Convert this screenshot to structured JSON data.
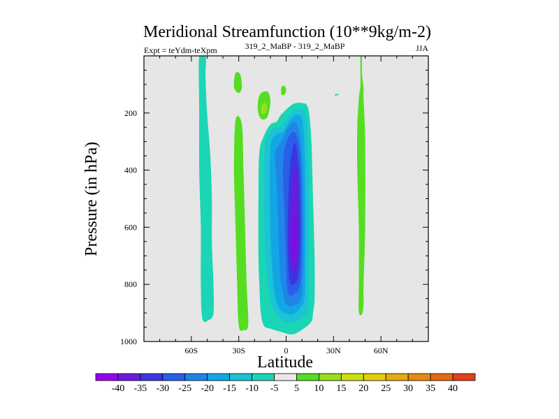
{
  "chart_data": {
    "type": "filled-contour",
    "title": "Meridional Streamfunction (10**9kg/m-2)",
    "left_subtitle": "Expt = teYdm-teXpm",
    "center_subtitle": "319_2_MaBP - 319_2_MaBP",
    "right_subtitle": "JJA",
    "xlabel": "Latitude",
    "ylabel": "Pressure (in hPa)",
    "xlim": [
      -90,
      90
    ],
    "ylim": [
      1000,
      0
    ],
    "x_ticks": [
      {
        "value": -60,
        "label": "60S"
      },
      {
        "value": -30,
        "label": "30S"
      },
      {
        "value": 0,
        "label": "0"
      },
      {
        "value": 30,
        "label": "30N"
      },
      {
        "value": 60,
        "label": "60N"
      }
    ],
    "y_ticks": [
      {
        "value": 200,
        "label": "200"
      },
      {
        "value": 400,
        "label": "400"
      },
      {
        "value": 600,
        "label": "600"
      },
      {
        "value": 800,
        "label": "800"
      },
      {
        "value": 1000,
        "label": "1000"
      }
    ],
    "missing_fill": "#e6e6e6",
    "colorbar": {
      "labels": [
        "-40",
        "-35",
        "-30",
        "-25",
        "-20",
        "-15",
        "-10",
        "-5",
        "5",
        "10",
        "15",
        "20",
        "25",
        "30",
        "35",
        "40"
      ],
      "colors": [
        "#9900ee",
        "#6a1bdd",
        "#3b35e0",
        "#2a5ee8",
        "#1f86e8",
        "#12a7e4",
        "#1cc3d4",
        "#1ad6b4",
        "#e8e8e8",
        "#55dd22",
        "#99dd22",
        "#cce011",
        "#e6cc11",
        "#e6aa11",
        "#e68a11",
        "#e66a11",
        "#e0401a"
      ]
    },
    "features": [
      {
        "name": "negative-cell-cyan-band-60S",
        "level": -5,
        "color": "#1ad6b4",
        "outline": [
          [
            -55,
            0
          ],
          [
            -51,
            0
          ],
          [
            -51,
            80
          ],
          [
            -50,
            200
          ],
          [
            -48,
            350
          ],
          [
            -47,
            500
          ],
          [
            -47,
            650
          ],
          [
            -46,
            800
          ],
          [
            -46,
            900
          ],
          [
            -49,
            925
          ],
          [
            -53,
            920
          ],
          [
            -54,
            800
          ],
          [
            -54,
            600
          ],
          [
            -55,
            400
          ],
          [
            -55,
            200
          ]
        ]
      },
      {
        "name": "positive-band-30S",
        "level": 5,
        "color": "#55dd22",
        "outline": [
          [
            -32,
            225
          ],
          [
            -28,
            240
          ],
          [
            -27,
            400
          ],
          [
            -26,
            600
          ],
          [
            -25,
            800
          ],
          [
            -24,
            940
          ],
          [
            -27,
            960
          ],
          [
            -30,
            945
          ],
          [
            -31,
            800
          ],
          [
            -32,
            600
          ],
          [
            -33,
            400
          ]
        ]
      },
      {
        "name": "positive-blob-upper-left",
        "level": 5,
        "color": "#55dd22",
        "outline": [
          [
            -32,
            60
          ],
          [
            -29,
            65
          ],
          [
            -28,
            110
          ],
          [
            -30,
            130
          ],
          [
            -33,
            110
          ]
        ]
      },
      {
        "name": "positive-blob-15S",
        "level": 5,
        "color": "#55dd22",
        "outline": [
          [
            -17,
            140
          ],
          [
            -14,
            125
          ],
          [
            -11,
            130
          ],
          [
            -10,
            165
          ],
          [
            -12,
            215
          ],
          [
            -16,
            220
          ],
          [
            -18,
            185
          ]
        ]
      },
      {
        "name": "positive-core-15S",
        "level": 10,
        "color": "#99dd22",
        "outline": [
          [
            -15,
            170
          ],
          [
            -13,
            165
          ],
          [
            -12,
            185
          ],
          [
            -14,
            205
          ],
          [
            -16,
            195
          ]
        ]
      },
      {
        "name": "positive-blob-near-equator",
        "level": 5,
        "color": "#55dd22",
        "outline": [
          [
            -3,
            110
          ],
          [
            -1,
            105
          ],
          [
            0,
            120
          ],
          [
            -1,
            135
          ],
          [
            -3,
            135
          ]
        ]
      },
      {
        "name": "negative-outer-equatorial",
        "level": -5,
        "color": "#1ad6b4",
        "outline": [
          [
            -17,
            340
          ],
          [
            -14,
            280
          ],
          [
            -10,
            240
          ],
          [
            -6,
            230
          ],
          [
            -3,
            205
          ],
          [
            4,
            170
          ],
          [
            10,
            165
          ],
          [
            14,
            185
          ],
          [
            16,
            300
          ],
          [
            17,
            500
          ],
          [
            18,
            700
          ],
          [
            18,
            850
          ],
          [
            17,
            900
          ],
          [
            16,
            930
          ],
          [
            11,
            955
          ],
          [
            4,
            975
          ],
          [
            -4,
            965
          ],
          [
            -10,
            955
          ],
          [
            -14,
            945
          ],
          [
            -16,
            900
          ],
          [
            -17,
            800
          ],
          [
            -17.5,
            700
          ],
          [
            -17.5,
            500
          ]
        ]
      },
      {
        "name": "negative-level-10",
        "level": -10,
        "color": "#1cc3d4",
        "outline": [
          [
            -13,
            300
          ],
          [
            -8,
            255
          ],
          [
            -3,
            245
          ],
          [
            4,
            195
          ],
          [
            9,
            185
          ],
          [
            12,
            205
          ],
          [
            14,
            320
          ],
          [
            14,
            850
          ],
          [
            12,
            905
          ],
          [
            6,
            930
          ],
          [
            -1,
            930
          ],
          [
            -6,
            905
          ],
          [
            -10,
            850
          ],
          [
            -13,
            700
          ],
          [
            -14,
            450
          ]
        ]
      },
      {
        "name": "negative-level-15",
        "level": -15,
        "color": "#12a7e4",
        "outline": [
          [
            -10,
            330
          ],
          [
            -6,
            275
          ],
          [
            -2,
            265
          ],
          [
            4,
            215
          ],
          [
            9,
            210
          ],
          [
            11,
            260
          ],
          [
            12,
            400
          ],
          [
            12,
            800
          ],
          [
            10,
            875
          ],
          [
            4,
            905
          ],
          [
            -1,
            900
          ],
          [
            -5,
            875
          ],
          [
            -8,
            800
          ],
          [
            -10,
            600
          ]
        ]
      },
      {
        "name": "negative-level-20",
        "level": -20,
        "color": "#1f86e8",
        "outline": [
          [
            -7,
            340
          ],
          [
            -3,
            300
          ],
          [
            2,
            245
          ],
          [
            7,
            240
          ],
          [
            10,
            350
          ],
          [
            11,
            600
          ],
          [
            10,
            830
          ],
          [
            5,
            875
          ],
          [
            0,
            870
          ],
          [
            -2,
            830
          ],
          [
            -4,
            760
          ],
          [
            -5,
            600
          ],
          [
            -6,
            450
          ]
        ]
      },
      {
        "name": "negative-level-25",
        "level": -25,
        "color": "#2a5ee8",
        "outline": [
          [
            -2,
            380
          ],
          [
            1,
            290
          ],
          [
            6,
            270
          ],
          [
            9,
            360
          ],
          [
            10,
            600
          ],
          [
            9,
            790
          ],
          [
            5,
            835
          ],
          [
            1,
            825
          ],
          [
            0,
            700
          ],
          [
            -1,
            550
          ]
        ]
      },
      {
        "name": "negative-level-30",
        "level": -30,
        "color": "#3b35e0",
        "outline": [
          [
            2,
            420
          ],
          [
            4,
            330
          ],
          [
            6,
            310
          ],
          [
            8,
            400
          ],
          [
            9,
            600
          ],
          [
            8,
            760
          ],
          [
            5,
            800
          ],
          [
            2,
            780
          ],
          [
            1,
            620
          ]
        ]
      },
      {
        "name": "negative-level-35",
        "level": -35,
        "color": "#6a1bdd",
        "outline": [
          [
            3,
            520
          ],
          [
            5,
            400
          ],
          [
            7,
            420
          ],
          [
            8,
            600
          ],
          [
            7,
            720
          ],
          [
            5,
            760
          ],
          [
            3,
            720
          ],
          [
            2,
            620
          ]
        ]
      },
      {
        "name": "negative-level-40-core",
        "level": -40,
        "color": "#7a10e0",
        "outline": [
          [
            4,
            610
          ],
          [
            5,
            560
          ],
          [
            6,
            580
          ],
          [
            7,
            660
          ],
          [
            6,
            720
          ],
          [
            4,
            720
          ],
          [
            3,
            680
          ]
        ]
      },
      {
        "name": "negative-sliver-30N",
        "level": -5,
        "color": "#1ad6b4",
        "outline": [
          [
            31,
            135
          ],
          [
            33,
            133
          ],
          [
            33,
            137
          ],
          [
            31,
            139
          ]
        ]
      },
      {
        "name": "positive-band-45N",
        "level": 5,
        "color": "#55dd22",
        "outline": [
          [
            47,
            0
          ],
          [
            48,
            0
          ],
          [
            48,
            60
          ],
          [
            49,
            110
          ],
          [
            49,
            150
          ],
          [
            50,
            300
          ],
          [
            50,
            600
          ],
          [
            49,
            800
          ],
          [
            49,
            870
          ],
          [
            48,
            905
          ],
          [
            46,
            895
          ],
          [
            46,
            800
          ],
          [
            46,
            600
          ],
          [
            45,
            400
          ],
          [
            45,
            250
          ],
          [
            46,
            150
          ],
          [
            47,
            100
          ]
        ]
      }
    ]
  }
}
